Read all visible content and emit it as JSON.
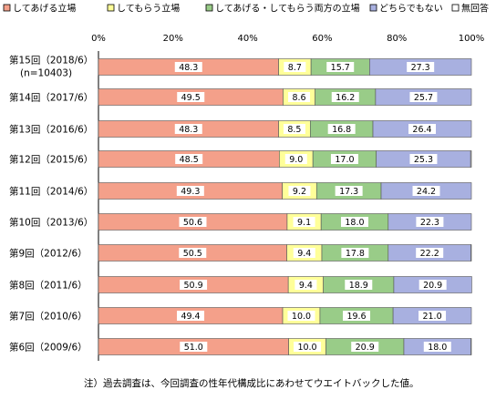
{
  "chart_data": {
    "type": "bar",
    "orientation": "horizontal",
    "stacked": "percent",
    "legend": [
      {
        "name": "してあげる立場",
        "color": "#F4A08A"
      },
      {
        "name": "してもらう立場",
        "color": "#FFFF99"
      },
      {
        "name": "してあげる・してもらう両方の立場",
        "color": "#99CC88"
      },
      {
        "name": "どちらでもない",
        "color": "#A8B0E0"
      },
      {
        "name": "無回答",
        "color": "#FFFFFF"
      }
    ],
    "legend_placement": "top",
    "x_ticks": [
      "0%",
      "20%",
      "40%",
      "60%",
      "80%",
      "100%"
    ],
    "xlim": [
      0,
      100
    ],
    "grid": false,
    "categories": [
      {
        "label": "第15回（2018/6）",
        "sublabel": "(n=10403)"
      },
      {
        "label": "第14回（2017/6）",
        "sublabel": ""
      },
      {
        "label": "第13回（2016/6）",
        "sublabel": ""
      },
      {
        "label": "第12回（2015/6）",
        "sublabel": ""
      },
      {
        "label": "第11回（2014/6）",
        "sublabel": ""
      },
      {
        "label": "第10回（2013/6）",
        "sublabel": ""
      },
      {
        "label": "第9回（2012/6）",
        "sublabel": ""
      },
      {
        "label": "第8回（2011/6）",
        "sublabel": ""
      },
      {
        "label": "第7回（2010/6）",
        "sublabel": ""
      },
      {
        "label": "第6回（2009/6）",
        "sublabel": ""
      }
    ],
    "series": [
      {
        "name": "してあげる立場",
        "values": [
          48.3,
          49.5,
          48.3,
          48.5,
          49.3,
          50.6,
          50.5,
          50.9,
          49.4,
          51.0
        ],
        "labels": [
          "48.3",
          "49.5",
          "48.3",
          "48.5",
          "49.3",
          "50.6",
          "50.5",
          "50.9",
          "49.4",
          "51.0"
        ]
      },
      {
        "name": "してもらう立場",
        "values": [
          8.7,
          8.6,
          8.5,
          9.0,
          9.2,
          9.1,
          9.4,
          9.4,
          10.0,
          10.0
        ],
        "labels": [
          "8.7",
          "8.6",
          "8.5",
          "9.0",
          "9.2",
          "9.1",
          "9.4",
          "9.4",
          "10.0",
          "10.0"
        ]
      },
      {
        "name": "してあげる・してもらう両方の立場",
        "values": [
          15.7,
          16.2,
          16.8,
          17.0,
          17.3,
          18.0,
          17.8,
          18.9,
          19.6,
          20.9
        ],
        "labels": [
          "15.7",
          "16.2",
          "16.8",
          "17.0",
          "17.3",
          "18.0",
          "17.8",
          "18.9",
          "19.6",
          "20.9"
        ]
      },
      {
        "name": "どちらでもない",
        "values": [
          27.3,
          25.7,
          26.4,
          25.3,
          24.2,
          22.3,
          22.2,
          20.9,
          21.0,
          18.0
        ],
        "labels": [
          "27.3",
          "25.7",
          "26.4",
          "25.3",
          "24.2",
          "22.3",
          "22.2",
          "20.9",
          "21.0",
          "18.0"
        ]
      },
      {
        "name": "無回答",
        "values": [
          0.0,
          0.0,
          0.0,
          0.2,
          0.0,
          0.0,
          0.1,
          0.0,
          0.0,
          0.1
        ],
        "labels": []
      }
    ],
    "note": "注）過去調査は、今回調査の性年代構成比にあわせてウエイトバックした値。"
  }
}
